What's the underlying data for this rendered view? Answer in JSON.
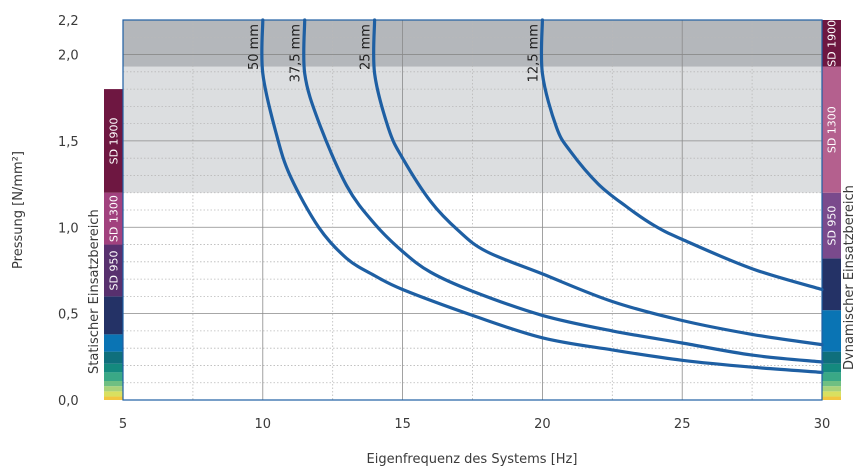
{
  "chart_data": {
    "type": "line",
    "xlabel": "Eigenfrequenz des Systems [Hz]",
    "ylabel": "Pressung [N/mm²]",
    "xlim": [
      5,
      30
    ],
    "ylim": [
      0,
      2.2
    ],
    "xticks": [
      5,
      10,
      15,
      20,
      25,
      30
    ],
    "yticks": [
      0.0,
      0.5,
      1.0,
      1.5,
      2.0,
      2.2
    ],
    "xtick_labels": [
      "5",
      "10",
      "15",
      "20",
      "25",
      "30"
    ],
    "ytick_labels": [
      "0,0",
      "0,5",
      "1,0",
      "1,5",
      "2,0",
      "2,2"
    ],
    "grid": true,
    "static_label": "Statischer Einsatzbereich",
    "dynamic_label": "Dynamischer Einsatzbereich",
    "series": [
      {
        "name": "50 mm",
        "label_x": 10,
        "x": [
          10.0,
          10.5,
          11,
          12,
          13,
          14,
          15,
          17.5,
          20,
          22.5,
          25,
          27.5,
          30
        ],
        "y": [
          1.89,
          1.53,
          1.29,
          1.0,
          0.82,
          0.72,
          0.64,
          0.49,
          0.36,
          0.29,
          0.23,
          0.19,
          0.16
        ]
      },
      {
        "name": "37,5 mm",
        "label_x": 11.5,
        "x": [
          11.5,
          12,
          13,
          14,
          15,
          16,
          17.5,
          20,
          22.5,
          25,
          27.5,
          30
        ],
        "y": [
          1.89,
          1.61,
          1.24,
          1.02,
          0.86,
          0.74,
          0.63,
          0.49,
          0.4,
          0.33,
          0.26,
          0.22
        ]
      },
      {
        "name": "25 mm",
        "label_x": 14,
        "x": [
          14.0,
          14.5,
          15,
          16,
          17,
          18,
          20,
          22.5,
          25,
          27.5,
          30
        ],
        "y": [
          1.89,
          1.57,
          1.4,
          1.15,
          0.98,
          0.86,
          0.73,
          0.57,
          0.46,
          0.38,
          0.32
        ]
      },
      {
        "name": "12,5 mm",
        "label_x": 20,
        "x": [
          20.0,
          20.5,
          21,
          22,
          23,
          24,
          25,
          27.5,
          30
        ],
        "y": [
          1.89,
          1.58,
          1.44,
          1.25,
          1.12,
          1.01,
          0.93,
          0.76,
          0.64
        ]
      }
    ],
    "background_bands": [
      {
        "y": [
          1.2,
          1.93
        ],
        "color": "#dcdee0"
      },
      {
        "y": [
          1.93,
          2.2
        ],
        "color": "#b4b7bb"
      }
    ],
    "static_bar": [
      {
        "y": [
          0.0,
          0.02
        ],
        "color": "#f2c640"
      },
      {
        "y": [
          0.02,
          0.05
        ],
        "color": "#d9e060"
      },
      {
        "y": [
          0.05,
          0.08
        ],
        "color": "#a9d27a"
      },
      {
        "y": [
          0.08,
          0.11
        ],
        "color": "#6fbf82"
      },
      {
        "y": [
          0.11,
          0.16
        ],
        "color": "#3aa886"
      },
      {
        "y": [
          0.16,
          0.21
        ],
        "color": "#14897e"
      },
      {
        "y": [
          0.21,
          0.28
        ],
        "color": "#0f6f7c"
      },
      {
        "y": [
          0.28,
          0.38
        ],
        "color": "#0a74b4"
      },
      {
        "y": [
          0.38,
          0.6
        ],
        "color": "#243266"
      },
      {
        "y": [
          0.6,
          0.9
        ],
        "color": "#58306e",
        "label": "SD 950"
      },
      {
        "y": [
          0.9,
          1.2
        ],
        "color": "#a1417e",
        "label": "SD 1300"
      },
      {
        "y": [
          1.2,
          1.8
        ],
        "color": "#6e1741",
        "label": "SD 1900"
      }
    ],
    "dynamic_bar": [
      {
        "y": [
          0.0,
          0.02
        ],
        "color": "#f2c640"
      },
      {
        "y": [
          0.02,
          0.05
        ],
        "color": "#d9e060"
      },
      {
        "y": [
          0.05,
          0.08
        ],
        "color": "#a9d27a"
      },
      {
        "y": [
          0.08,
          0.11
        ],
        "color": "#6fbf82"
      },
      {
        "y": [
          0.11,
          0.16
        ],
        "color": "#3aa886"
      },
      {
        "y": [
          0.16,
          0.21
        ],
        "color": "#14897e"
      },
      {
        "y": [
          0.21,
          0.28
        ],
        "color": "#0f6f7c"
      },
      {
        "y": [
          0.28,
          0.52
        ],
        "color": "#0a74b4"
      },
      {
        "y": [
          0.52,
          0.82
        ],
        "color": "#243266"
      },
      {
        "y": [
          0.82,
          1.2
        ],
        "color": "#7a4a8c",
        "label": "SD 950"
      },
      {
        "y": [
          1.2,
          1.93
        ],
        "color": "#b4608e",
        "label": "SD 1300"
      },
      {
        "y": [
          1.93,
          2.2
        ],
        "color": "#6e1741",
        "label": "SD 1900"
      }
    ],
    "curve_color": "#1e5fa3",
    "frame_color": "#1e5fa3"
  }
}
